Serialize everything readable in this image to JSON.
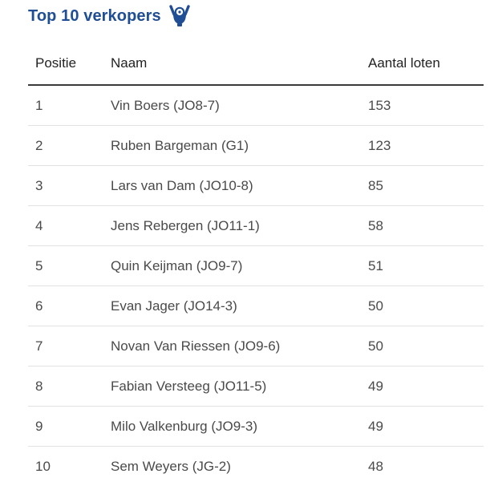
{
  "header": {
    "title": "Top 10 verkopers",
    "icon": "trophy-cheering-person-icon",
    "accent_color": "#1f4e94"
  },
  "table": {
    "columns": [
      "Positie",
      "Naam",
      "Aantal loten"
    ],
    "rows": [
      {
        "positie": "1",
        "naam": "Vin Boers (JO8-7)",
        "aantal": "153"
      },
      {
        "positie": "2",
        "naam": "Ruben Bargeman (G1)",
        "aantal": "123"
      },
      {
        "positie": "3",
        "naam": "Lars van Dam (JO10-8)",
        "aantal": "85"
      },
      {
        "positie": "4",
        "naam": "Jens Rebergen (JO11-1)",
        "aantal": "58"
      },
      {
        "positie": "5",
        "naam": "Quin Keijman (JO9-7)",
        "aantal": "51"
      },
      {
        "positie": "6",
        "naam": "Evan Jager (JO14-3)",
        "aantal": "50"
      },
      {
        "positie": "7",
        "naam": "Novan Van Riessen (JO9-6)",
        "aantal": "50"
      },
      {
        "positie": "8",
        "naam": "Fabian Versteeg (JO11-5)",
        "aantal": "49"
      },
      {
        "positie": "9",
        "naam": "Milo Valkenburg (JO9-3)",
        "aantal": "49"
      },
      {
        "positie": "10",
        "naam": "Sem Weyers (JG-2)",
        "aantal": "48"
      }
    ]
  }
}
